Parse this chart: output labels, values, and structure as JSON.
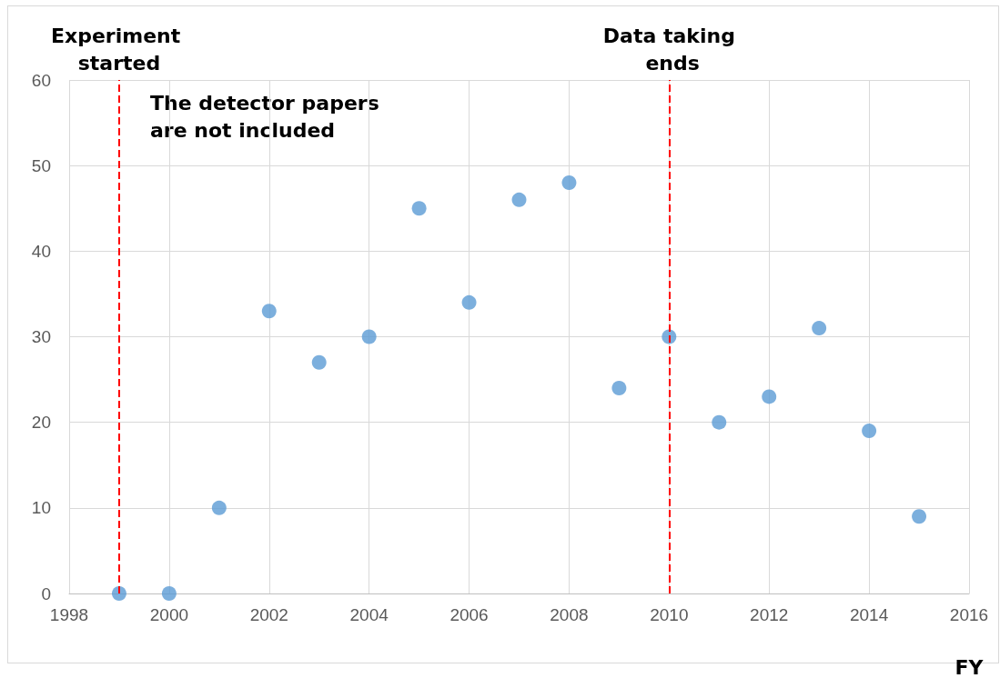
{
  "chart_data": {
    "type": "scatter",
    "xlabel": "FY",
    "x": [
      1999,
      2000,
      2001,
      2002,
      2003,
      2004,
      2005,
      2006,
      2007,
      2008,
      2009,
      2010,
      2011,
      2012,
      2013,
      2014,
      2015
    ],
    "series": [
      {
        "color": "#5b9bd5",
        "values": [
          0,
          0,
          10,
          33,
          27,
          30,
          45,
          34,
          46,
          48,
          24,
          30,
          20,
          23,
          31,
          19,
          9
        ]
      }
    ],
    "xlim": [
      1998,
      2016
    ],
    "xticks": [
      1998,
      2000,
      2002,
      2004,
      2006,
      2008,
      2010,
      2012,
      2014,
      2016
    ],
    "ylim": [
      0,
      60
    ],
    "yticks": [
      0,
      10,
      20,
      30,
      40,
      50,
      60
    ],
    "ref_lines": [
      {
        "axis": "x",
        "value": 1999,
        "label": "Experiment started",
        "color": "#ff0000",
        "line_style": "dashed"
      },
      {
        "axis": "x",
        "value": 2010,
        "label": "Data taking ends",
        "color": "#ff0000",
        "line_style": "dashed"
      }
    ],
    "annotations": [
      "The detector papers are not included"
    ],
    "grid": true,
    "marker": "circle"
  }
}
